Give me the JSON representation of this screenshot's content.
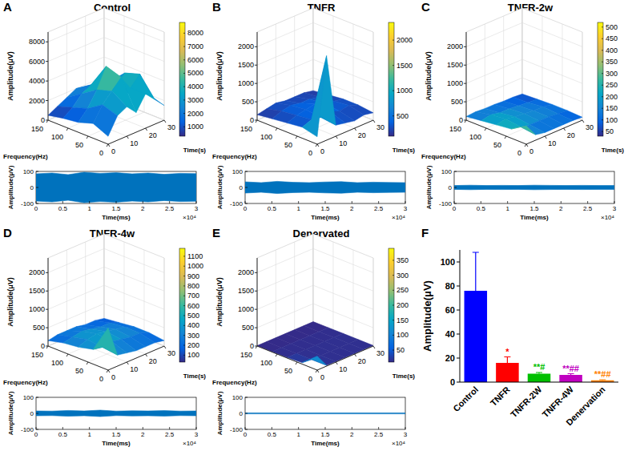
{
  "chart_data": [
    {
      "type": "surface",
      "panel_label": "A",
      "title": "Control",
      "x_label": "Time(s)",
      "y_label": "Frequency(Hz)",
      "z_label": "Amplitude(μV)",
      "xlim": [
        0,
        30
      ],
      "xticks": [
        0,
        10,
        20,
        30
      ],
      "ylim": [
        0,
        150
      ],
      "yticks": [
        0,
        50,
        100,
        150
      ],
      "zlim": [
        0,
        9000
      ],
      "zticks": [
        0,
        2000,
        4000,
        6000,
        8000
      ],
      "surface": {
        "x": [
          0,
          5,
          10,
          15,
          20,
          25,
          30
        ],
        "y": [
          0,
          37.5,
          75,
          112.5,
          150
        ],
        "z": [
          [
            800,
            2500,
            3000,
            2000,
            3500,
            2500,
            1500
          ],
          [
            1500,
            3000,
            4000,
            5000,
            3500,
            4500,
            2000
          ],
          [
            1000,
            2000,
            3500,
            5500,
            3000,
            4000,
            1500
          ],
          [
            800,
            1500,
            2500,
            3000,
            2000,
            2500,
            1000
          ],
          [
            500,
            1000,
            1500,
            2000,
            1500,
            1200,
            800
          ]
        ]
      },
      "colorbar": {
        "lim": [
          300,
          8800
        ],
        "ticks": [
          1000,
          2000,
          3000,
          4000,
          5000,
          6000,
          7000,
          8000
        ]
      },
      "trace": {
        "type": "band",
        "x_label": "Time(ms)",
        "y_label": "Amplitude(μV)",
        "x_multiplier_label": "×10⁴",
        "color": "#0072bd",
        "xlim": [
          0,
          30000
        ],
        "xticks": [
          0,
          {
            "value": 5000,
            "label": "0.5"
          },
          {
            "value": 10000,
            "label": "1"
          },
          {
            "value": 15000,
            "label": "1.5"
          },
          {
            "value": 20000,
            "label": "2"
          },
          {
            "value": 25000,
            "label": "2.5"
          },
          {
            "value": 30000,
            "label": "3"
          }
        ],
        "ylim": [
          -100,
          100
        ],
        "yticks": [
          -100,
          0,
          100
        ],
        "x": [
          0,
          3000,
          6000,
          9000,
          12000,
          15000,
          18000,
          21000,
          24000,
          27000,
          30000
        ],
        "envelope": [
          85,
          90,
          80,
          95,
          88,
          92,
          85,
          90,
          82,
          88,
          86
        ]
      }
    },
    {
      "type": "surface",
      "panel_label": "B",
      "title": "TNFR",
      "x_label": "Time(s)",
      "y_label": "Frequency(Hz)",
      "z_label": "Amplitude(μV)",
      "xlim": [
        0,
        30
      ],
      "xticks": [
        0,
        10,
        20,
        30
      ],
      "ylim": [
        0,
        150
      ],
      "yticks": [
        0,
        50,
        100,
        150
      ],
      "zlim": [
        0,
        2400
      ],
      "zticks": [
        0,
        500,
        1000,
        1500,
        2000
      ],
      "surface": {
        "x": [
          0,
          5,
          10,
          15,
          20,
          25,
          30
        ],
        "y": [
          0,
          37.5,
          75,
          112.5,
          150
        ],
        "z": [
          [
            200,
            2300,
            300,
            250,
            200,
            250,
            200
          ],
          [
            300,
            400,
            350,
            400,
            300,
            350,
            250
          ],
          [
            250,
            350,
            400,
            450,
            350,
            300,
            250
          ],
          [
            200,
            300,
            350,
            300,
            300,
            250,
            200
          ],
          [
            150,
            200,
            250,
            200,
            200,
            200,
            150
          ]
        ]
      },
      "colorbar": {
        "lim": [
          100,
          2350
        ],
        "ticks": [
          500,
          1000,
          1500,
          2000
        ]
      },
      "trace": {
        "type": "band",
        "x_label": "Time(ms)",
        "y_label": "Amplitude(μV)",
        "x_multiplier_label": "×10⁴",
        "color": "#0072bd",
        "xlim": [
          0,
          30000
        ],
        "xticks": [
          0,
          {
            "value": 5000,
            "label": "0.5"
          },
          {
            "value": 10000,
            "label": "1"
          },
          {
            "value": 15000,
            "label": "1.5"
          },
          {
            "value": 20000,
            "label": "2"
          },
          {
            "value": 25000,
            "label": "2.5"
          },
          {
            "value": 30000,
            "label": "3"
          }
        ],
        "ylim": [
          -100,
          100
        ],
        "yticks": [
          -100,
          0,
          100
        ],
        "x": [
          0,
          3000,
          6000,
          9000,
          12000,
          15000,
          18000,
          21000,
          24000,
          27000,
          30000
        ],
        "envelope": [
          35,
          30,
          38,
          32,
          30,
          34,
          36,
          30,
          33,
          31,
          30
        ]
      }
    },
    {
      "type": "surface",
      "panel_label": "C",
      "title": "TNFR-2w",
      "x_label": "Time(s)",
      "y_label": "Frequency(Hz)",
      "z_label": "Amplitude(μV)",
      "xlim": [
        0,
        30
      ],
      "xticks": [
        0,
        10,
        20,
        30
      ],
      "ylim": [
        0,
        150
      ],
      "yticks": [
        0,
        50,
        100,
        150
      ],
      "zlim": [
        0,
        2400
      ],
      "zticks": [
        0,
        500,
        1000,
        1500,
        2000
      ],
      "surface": {
        "x": [
          0,
          5,
          10,
          15,
          20,
          25,
          30
        ],
        "y": [
          0,
          37.5,
          75,
          112.5,
          150
        ],
        "z": [
          [
            500,
            150,
            100,
            100,
            100,
            100,
            80
          ],
          [
            250,
            200,
            150,
            150,
            150,
            120,
            100
          ],
          [
            200,
            250,
            200,
            180,
            150,
            150,
            100
          ],
          [
            150,
            200,
            150,
            150,
            120,
            100,
            80
          ],
          [
            100,
            120,
            100,
            100,
            80,
            80,
            60
          ]
        ]
      },
      "colorbar": {
        "lim": [
          30,
          520
        ],
        "ticks": [
          50,
          100,
          150,
          200,
          250,
          300,
          350,
          400,
          450,
          500
        ]
      },
      "trace": {
        "type": "band",
        "x_label": "Time(ms)",
        "y_label": "Amplitude(μV)",
        "x_multiplier_label": "×10⁴",
        "color": "#0072bd",
        "xlim": [
          0,
          30000
        ],
        "xticks": [
          0,
          {
            "value": 5000,
            "label": "0.5"
          },
          {
            "value": 10000,
            "label": "1"
          },
          {
            "value": 15000,
            "label": "1.5"
          },
          {
            "value": 20000,
            "label": "2"
          },
          {
            "value": 25000,
            "label": "2.5"
          },
          {
            "value": 30000,
            "label": "3"
          }
        ],
        "ylim": [
          -100,
          100
        ],
        "yticks": [
          -100,
          0,
          100
        ],
        "x": [
          0,
          3000,
          6000,
          9000,
          12000,
          15000,
          18000,
          21000,
          24000,
          27000,
          30000
        ],
        "envelope": [
          12,
          14,
          12,
          13,
          12,
          14,
          13,
          12,
          13,
          12,
          12
        ]
      }
    },
    {
      "type": "surface",
      "panel_label": "D",
      "title": "TNFR-4w",
      "x_label": "Time(s)",
      "y_label": "Frequency(Hz)",
      "z_label": "Amplitude(μV)",
      "xlim": [
        0,
        30
      ],
      "xticks": [
        0,
        10,
        20,
        30
      ],
      "ylim": [
        0,
        150
      ],
      "yticks": [
        0,
        50,
        100,
        150
      ],
      "zlim": [
        0,
        2400
      ],
      "zticks": [
        0,
        500,
        1000,
        1500,
        2000
      ],
      "surface": {
        "x": [
          0,
          5,
          10,
          15,
          20,
          25,
          30
        ],
        "y": [
          0,
          37.5,
          75,
          112.5,
          150
        ],
        "z": [
          [
            1150,
            300,
            250,
            200,
            200,
            200,
            150
          ],
          [
            400,
            350,
            400,
            350,
            300,
            300,
            200
          ],
          [
            300,
            400,
            450,
            400,
            350,
            300,
            200
          ],
          [
            250,
            300,
            350,
            300,
            250,
            250,
            150
          ],
          [
            150,
            200,
            200,
            200,
            150,
            150,
            100
          ]
        ]
      },
      "colorbar": {
        "lim": [
          30,
          1180
        ],
        "ticks": [
          100,
          200,
          300,
          400,
          500,
          600,
          700,
          800,
          900,
          1000,
          1100
        ]
      },
      "trace": {
        "type": "band",
        "x_label": "Time(ms)",
        "y_label": "Amplitude(μV)",
        "x_multiplier_label": "×10⁴",
        "color": "#0072bd",
        "xlim": [
          0,
          30000
        ],
        "xticks": [
          0,
          {
            "value": 5000,
            "label": "0.5"
          },
          {
            "value": 10000,
            "label": "1"
          },
          {
            "value": 15000,
            "label": "1.5"
          },
          {
            "value": 20000,
            "label": "2"
          },
          {
            "value": 25000,
            "label": "2.5"
          },
          {
            "value": 30000,
            "label": "3"
          }
        ],
        "ylim": [
          -100,
          100
        ],
        "yticks": [
          -100,
          0,
          100
        ],
        "x": [
          0,
          3000,
          6000,
          9000,
          12000,
          15000,
          18000,
          21000,
          24000,
          27000,
          30000
        ],
        "envelope": [
          15,
          14,
          18,
          15,
          20,
          14,
          16,
          15,
          17,
          14,
          15
        ]
      }
    },
    {
      "type": "surface",
      "panel_label": "E",
      "title": "Denervated",
      "x_label": "Time(s)",
      "y_label": "Frequency(Hz)",
      "z_label": "Amplitude(μV)",
      "xlim": [
        0,
        30
      ],
      "xticks": [
        0,
        10,
        20,
        30
      ],
      "ylim": [
        0,
        150
      ],
      "yticks": [
        0,
        50,
        100,
        150
      ],
      "zlim": [
        0,
        2400
      ],
      "zticks": [
        0,
        500,
        1000,
        1500,
        2000
      ],
      "surface": {
        "x": [
          0,
          5,
          10,
          15,
          20,
          25,
          30
        ],
        "y": [
          0,
          37.5,
          75,
          112.5,
          150
        ],
        "z": [
          [
            380,
            20,
            15,
            15,
            15,
            15,
            15
          ],
          [
            40,
            15,
            15,
            15,
            15,
            15,
            15
          ],
          [
            15,
            15,
            15,
            15,
            15,
            15,
            15
          ],
          [
            12,
            12,
            12,
            12,
            12,
            12,
            12
          ],
          [
            10,
            10,
            10,
            10,
            10,
            10,
            10
          ]
        ]
      },
      "colorbar": {
        "lim": [
          10,
          390
        ],
        "ticks": [
          50,
          100,
          150,
          200,
          250,
          300,
          350
        ]
      },
      "trace": {
        "type": "band",
        "x_label": "Time(ms)",
        "y_label": "Amplitude(μV)",
        "x_multiplier_label": "×10⁴",
        "color": "#0072bd",
        "xlim": [
          0,
          30000
        ],
        "xticks": [
          0,
          {
            "value": 5000,
            "label": "0.5"
          },
          {
            "value": 10000,
            "label": "1"
          },
          {
            "value": 15000,
            "label": "1.5"
          },
          {
            "value": 20000,
            "label": "2"
          },
          {
            "value": 25000,
            "label": "2.5"
          },
          {
            "value": 30000,
            "label": "3"
          }
        ],
        "ylim": [
          -100,
          100
        ],
        "yticks": [
          -100,
          0,
          100
        ],
        "x": [
          0,
          3000,
          6000,
          9000,
          12000,
          15000,
          18000,
          21000,
          24000,
          27000,
          30000
        ],
        "envelope": [
          3,
          3,
          3,
          3,
          3,
          3,
          3,
          3,
          3,
          3,
          3
        ]
      }
    },
    {
      "type": "bar",
      "panel_label": "F",
      "y_label": "Amplitude(μV)",
      "categories": [
        "Control",
        "TNFR",
        "TNFR-2W",
        "TNFR-4W",
        "Denervation"
      ],
      "values": [
        76,
        16,
        7,
        6,
        1.5
      ],
      "errors": [
        32,
        5,
        1,
        1,
        0.5
      ],
      "annotations": [
        null,
        "*",
        "**#",
        "**##",
        "**##"
      ],
      "colors": [
        "#0000ff",
        "#ff0000",
        "#00c000",
        "#c000c0",
        "#ff8000"
      ],
      "ylim": [
        0,
        110
      ],
      "yticks": [
        0,
        20,
        40,
        60,
        80,
        100
      ]
    }
  ]
}
